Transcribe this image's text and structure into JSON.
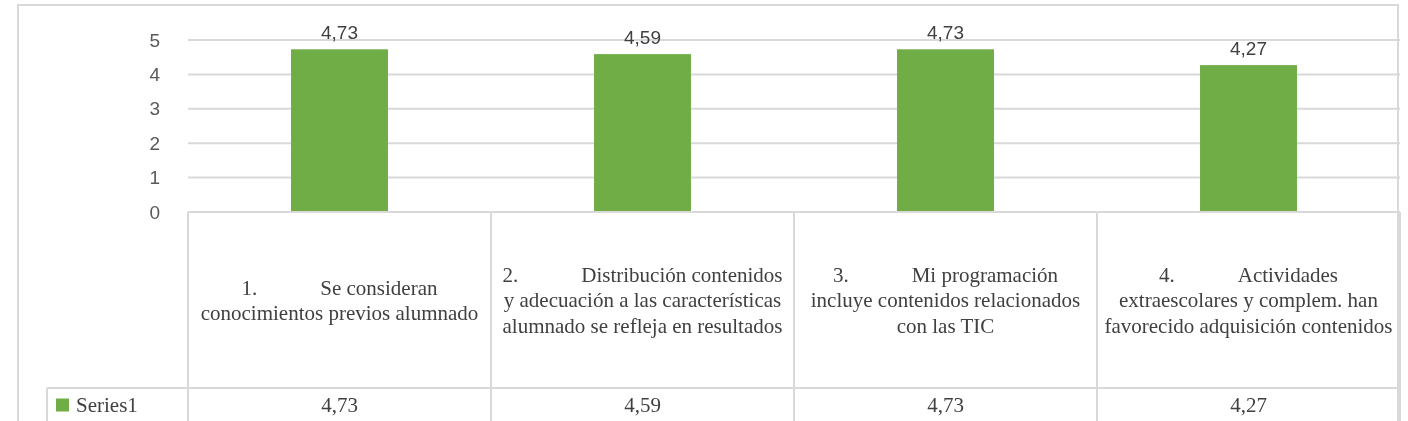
{
  "chart_data": {
    "type": "bar",
    "categories": [
      "1.   Se consideran conocimientos previos alumnado",
      "2.   Distribución contenidos y adecuación a las características alumnado se refleja en resultados",
      "3.   Mi programación incluye contenidos relacionados con las TIC",
      "4.   Actividades extraescolares y complem. han favorecido adquisición contenidos"
    ],
    "series": [
      {
        "name": "Series1",
        "color": "#70ad47",
        "values": [
          4.73,
          4.59,
          4.73,
          4.27
        ],
        "value_labels": [
          "4,73",
          "4,59",
          "4,73",
          "4,27"
        ]
      }
    ],
    "ylim": [
      0,
      5
    ],
    "yticks": [
      0,
      1,
      2,
      3,
      4,
      5
    ],
    "grid": "y",
    "legend": "bottom",
    "data_labels": true
  }
}
